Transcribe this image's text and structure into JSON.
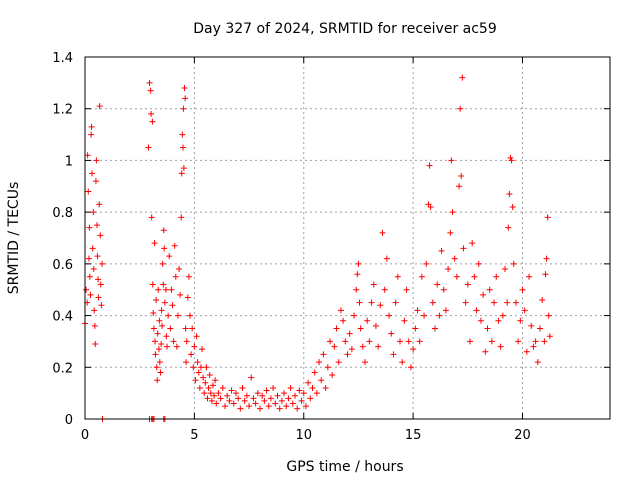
{
  "chart_data": {
    "type": "scatter",
    "title": "Day 327 of 2024, SRMTID for receiver ac59",
    "xlabel": "GPS time / hours",
    "ylabel": "SRMTID / TECUs",
    "xlim": [
      0,
      24
    ],
    "ylim": [
      0,
      1.4
    ],
    "xticks": [
      0,
      5,
      10,
      15,
      20
    ],
    "xtick_labels": [
      "0",
      "5",
      "10",
      "15",
      "20"
    ],
    "yticks": [
      0,
      0.2,
      0.4,
      0.6,
      0.8,
      1,
      1.2,
      1.4
    ],
    "ytick_labels": [
      "0",
      "0.2",
      "0.4",
      "0.6",
      "0.8",
      "1",
      "1.2",
      "1.4"
    ],
    "grid": true,
    "marker": "+",
    "color": "#ff0000",
    "series": [
      {
        "name": "SRMTID",
        "points": [
          [
            0.0,
            0.37
          ],
          [
            0.05,
            0.5
          ],
          [
            0.1,
            0.45
          ],
          [
            0.12,
            1.02
          ],
          [
            0.15,
            0.88
          ],
          [
            0.18,
            0.62
          ],
          [
            0.2,
            0.74
          ],
          [
            0.22,
            0.55
          ],
          [
            0.25,
            0.48
          ],
          [
            0.28,
            1.1
          ],
          [
            0.3,
            1.13
          ],
          [
            0.32,
            0.95
          ],
          [
            0.35,
            0.66
          ],
          [
            0.38,
            0.8
          ],
          [
            0.4,
            0.58
          ],
          [
            0.42,
            0.42
          ],
          [
            0.45,
            0.36
          ],
          [
            0.47,
            0.29
          ],
          [
            0.5,
            0.92
          ],
          [
            0.52,
            1.0
          ],
          [
            0.55,
            0.75
          ],
          [
            0.57,
            0.63
          ],
          [
            0.6,
            0.54
          ],
          [
            0.62,
            0.47
          ],
          [
            0.65,
            0.83
          ],
          [
            0.67,
            1.21
          ],
          [
            0.7,
            0.71
          ],
          [
            0.72,
            0.52
          ],
          [
            0.75,
            0.44
          ],
          [
            0.78,
            0.6
          ],
          [
            0.8,
            0.0
          ],
          [
            2.95,
            0.0
          ],
          [
            3.05,
            0.0
          ],
          [
            3.1,
            0.0
          ],
          [
            3.15,
            0.0
          ],
          [
            3.6,
            0.0
          ],
          [
            3.65,
            0.0
          ],
          [
            2.9,
            1.05
          ],
          [
            2.95,
            1.3
          ],
          [
            3.0,
            1.27
          ],
          [
            3.02,
            1.18
          ],
          [
            3.05,
            0.78
          ],
          [
            3.08,
            1.15
          ],
          [
            3.1,
            0.52
          ],
          [
            3.12,
            0.41
          ],
          [
            3.15,
            0.35
          ],
          [
            3.18,
            0.68
          ],
          [
            3.2,
            0.3
          ],
          [
            3.22,
            0.25
          ],
          [
            3.25,
            0.46
          ],
          [
            3.28,
            0.2
          ],
          [
            3.3,
            0.15
          ],
          [
            3.32,
            0.33
          ],
          [
            3.35,
            0.5
          ],
          [
            3.38,
            0.27
          ],
          [
            3.4,
            0.38
          ],
          [
            3.42,
            0.22
          ],
          [
            3.45,
            0.18
          ],
          [
            3.48,
            0.29
          ],
          [
            3.5,
            0.42
          ],
          [
            3.52,
            0.36
          ],
          [
            3.55,
            0.6
          ],
          [
            3.58,
            0.52
          ],
          [
            3.6,
            0.73
          ],
          [
            3.62,
            0.66
          ],
          [
            3.65,
            0.45
          ],
          [
            3.7,
            0.5
          ],
          [
            3.72,
            0.32
          ],
          [
            3.75,
            0.28
          ],
          [
            3.8,
            0.4
          ],
          [
            3.85,
            0.63
          ],
          [
            3.9,
            0.35
          ],
          [
            3.95,
            0.5
          ],
          [
            4.0,
            0.44
          ],
          [
            4.05,
            0.3
          ],
          [
            4.1,
            0.67
          ],
          [
            4.15,
            0.55
          ],
          [
            4.2,
            0.28
          ],
          [
            4.25,
            0.4
          ],
          [
            4.3,
            0.58
          ],
          [
            4.35,
            0.48
          ],
          [
            4.4,
            0.78
          ],
          [
            4.42,
            0.95
          ],
          [
            4.45,
            1.1
          ],
          [
            4.48,
            1.05
          ],
          [
            4.5,
            1.2
          ],
          [
            4.52,
            0.97
          ],
          [
            4.55,
            1.28
          ],
          [
            4.58,
            1.24
          ],
          [
            4.6,
            0.35
          ],
          [
            4.62,
            0.22
          ],
          [
            4.65,
            0.3
          ],
          [
            4.7,
            0.47
          ],
          [
            4.75,
            0.55
          ],
          [
            4.8,
            0.4
          ],
          [
            4.85,
            0.25
          ],
          [
            4.9,
            0.35
          ],
          [
            4.95,
            0.2
          ],
          [
            5.0,
            0.28
          ],
          [
            5.05,
            0.15
          ],
          [
            5.1,
            0.32
          ],
          [
            5.15,
            0.22
          ],
          [
            5.2,
            0.18
          ],
          [
            5.25,
            0.12
          ],
          [
            5.3,
            0.2
          ],
          [
            5.35,
            0.27
          ],
          [
            5.4,
            0.16
          ],
          [
            5.45,
            0.1
          ],
          [
            5.5,
            0.14
          ],
          [
            5.55,
            0.2
          ],
          [
            5.6,
            0.08
          ],
          [
            5.65,
            0.12
          ],
          [
            5.7,
            0.17
          ],
          [
            5.75,
            0.1
          ],
          [
            5.8,
            0.07
          ],
          [
            5.85,
            0.13
          ],
          [
            5.9,
            0.09
          ],
          [
            5.95,
            0.15
          ],
          [
            6.0,
            0.06
          ],
          [
            6.1,
            0.1
          ],
          [
            6.2,
            0.08
          ],
          [
            6.3,
            0.12
          ],
          [
            6.4,
            0.05
          ],
          [
            6.5,
            0.09
          ],
          [
            6.6,
            0.07
          ],
          [
            6.7,
            0.11
          ],
          [
            6.8,
            0.06
          ],
          [
            6.9,
            0.1
          ],
          [
            7.0,
            0.08
          ],
          [
            7.1,
            0.04
          ],
          [
            7.2,
            0.12
          ],
          [
            7.3,
            0.07
          ],
          [
            7.4,
            0.09
          ],
          [
            7.5,
            0.05
          ],
          [
            7.6,
            0.16
          ],
          [
            7.7,
            0.08
          ],
          [
            7.8,
            0.06
          ],
          [
            7.9,
            0.1
          ],
          [
            8.0,
            0.04
          ],
          [
            8.1,
            0.09
          ],
          [
            8.2,
            0.07
          ],
          [
            8.3,
            0.11
          ],
          [
            8.4,
            0.05
          ],
          [
            8.5,
            0.08
          ],
          [
            8.6,
            0.12
          ],
          [
            8.7,
            0.06
          ],
          [
            8.8,
            0.09
          ],
          [
            8.9,
            0.04
          ],
          [
            9.0,
            0.07
          ],
          [
            9.1,
            0.1
          ],
          [
            9.2,
            0.05
          ],
          [
            9.3,
            0.08
          ],
          [
            9.4,
            0.12
          ],
          [
            9.5,
            0.06
          ],
          [
            9.6,
            0.09
          ],
          [
            9.7,
            0.04
          ],
          [
            9.8,
            0.11
          ],
          [
            9.9,
            0.07
          ],
          [
            10.0,
            0.1
          ],
          [
            10.1,
            0.05
          ],
          [
            10.2,
            0.14
          ],
          [
            10.3,
            0.08
          ],
          [
            10.4,
            0.12
          ],
          [
            10.5,
            0.18
          ],
          [
            10.6,
            0.1
          ],
          [
            10.7,
            0.22
          ],
          [
            10.8,
            0.15
          ],
          [
            10.9,
            0.25
          ],
          [
            11.0,
            0.12
          ],
          [
            11.1,
            0.2
          ],
          [
            11.2,
            0.3
          ],
          [
            11.3,
            0.17
          ],
          [
            11.4,
            0.28
          ],
          [
            11.5,
            0.35
          ],
          [
            11.6,
            0.22
          ],
          [
            11.7,
            0.42
          ],
          [
            11.8,
            0.38
          ],
          [
            11.9,
            0.3
          ],
          [
            12.0,
            0.25
          ],
          [
            12.1,
            0.33
          ],
          [
            12.2,
            0.27
          ],
          [
            12.3,
            0.4
          ],
          [
            12.4,
            0.5
          ],
          [
            12.45,
            0.56
          ],
          [
            12.5,
            0.6
          ],
          [
            12.55,
            0.45
          ],
          [
            12.6,
            0.35
          ],
          [
            12.7,
            0.28
          ],
          [
            12.8,
            0.22
          ],
          [
            12.9,
            0.38
          ],
          [
            13.0,
            0.3
          ],
          [
            13.1,
            0.45
          ],
          [
            13.2,
            0.52
          ],
          [
            13.3,
            0.36
          ],
          [
            13.4,
            0.28
          ],
          [
            13.5,
            0.44
          ],
          [
            13.6,
            0.72
          ],
          [
            13.7,
            0.5
          ],
          [
            13.8,
            0.62
          ],
          [
            13.9,
            0.4
          ],
          [
            14.0,
            0.33
          ],
          [
            14.1,
            0.25
          ],
          [
            14.2,
            0.45
          ],
          [
            14.3,
            0.55
          ],
          [
            14.4,
            0.3
          ],
          [
            14.5,
            0.22
          ],
          [
            14.6,
            0.38
          ],
          [
            14.7,
            0.5
          ],
          [
            14.8,
            0.3
          ],
          [
            14.9,
            0.2
          ],
          [
            15.0,
            0.27
          ],
          [
            15.1,
            0.35
          ],
          [
            15.2,
            0.42
          ],
          [
            15.3,
            0.3
          ],
          [
            15.4,
            0.55
          ],
          [
            15.5,
            0.4
          ],
          [
            15.6,
            0.6
          ],
          [
            15.7,
            0.83
          ],
          [
            15.75,
            0.98
          ],
          [
            15.8,
            0.82
          ],
          [
            15.9,
            0.45
          ],
          [
            16.0,
            0.35
          ],
          [
            16.1,
            0.52
          ],
          [
            16.2,
            0.4
          ],
          [
            16.3,
            0.65
          ],
          [
            16.4,
            0.5
          ],
          [
            16.5,
            0.42
          ],
          [
            16.6,
            0.58
          ],
          [
            16.7,
            0.72
          ],
          [
            16.75,
            1.0
          ],
          [
            16.8,
            0.8
          ],
          [
            16.9,
            0.62
          ],
          [
            17.0,
            0.55
          ],
          [
            17.1,
            0.9
          ],
          [
            17.15,
            1.2
          ],
          [
            17.2,
            0.94
          ],
          [
            17.25,
            1.32
          ],
          [
            17.3,
            0.66
          ],
          [
            17.4,
            0.45
          ],
          [
            17.5,
            0.52
          ],
          [
            17.6,
            0.3
          ],
          [
            17.7,
            0.68
          ],
          [
            17.8,
            0.55
          ],
          [
            17.9,
            0.42
          ],
          [
            18.0,
            0.6
          ],
          [
            18.1,
            0.38
          ],
          [
            18.2,
            0.48
          ],
          [
            18.3,
            0.26
          ],
          [
            18.4,
            0.35
          ],
          [
            18.5,
            0.5
          ],
          [
            18.6,
            0.3
          ],
          [
            18.7,
            0.45
          ],
          [
            18.8,
            0.55
          ],
          [
            18.9,
            0.38
          ],
          [
            19.0,
            0.28
          ],
          [
            19.1,
            0.4
          ],
          [
            19.2,
            0.58
          ],
          [
            19.3,
            0.45
          ],
          [
            19.35,
            0.74
          ],
          [
            19.4,
            0.87
          ],
          [
            19.45,
            1.01
          ],
          [
            19.5,
            1.0
          ],
          [
            19.55,
            0.82
          ],
          [
            19.6,
            0.6
          ],
          [
            19.7,
            0.45
          ],
          [
            19.8,
            0.3
          ],
          [
            19.9,
            0.38
          ],
          [
            20.0,
            0.5
          ],
          [
            20.1,
            0.42
          ],
          [
            20.2,
            0.26
          ],
          [
            20.3,
            0.55
          ],
          [
            20.4,
            0.36
          ],
          [
            20.5,
            0.28
          ],
          [
            20.6,
            0.3
          ],
          [
            20.7,
            0.22
          ],
          [
            20.8,
            0.35
          ],
          [
            20.9,
            0.46
          ],
          [
            21.0,
            0.3
          ],
          [
            21.05,
            0.56
          ],
          [
            21.1,
            0.62
          ],
          [
            21.15,
            0.78
          ],
          [
            21.2,
            0.4
          ],
          [
            21.25,
            0.32
          ]
        ]
      }
    ]
  }
}
